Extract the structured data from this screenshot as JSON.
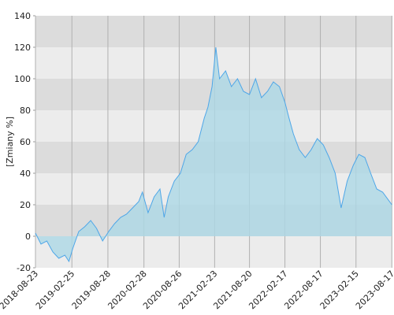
{
  "chart_data": {
    "type": "area",
    "y_label": "[Zmiany %]",
    "x": [
      "2018-08-23",
      "2018-09-20",
      "2018-10-20",
      "2018-11-20",
      "2018-12-20",
      "2019-01-20",
      "2019-02-10",
      "2019-03-01",
      "2019-04-01",
      "2019-05-01",
      "2019-06-01",
      "2019-07-01",
      "2019-08-01",
      "2019-09-01",
      "2019-10-01",
      "2019-11-01",
      "2019-12-01",
      "2020-01-01",
      "2020-02-01",
      "2020-02-20",
      "2020-03-20",
      "2020-04-20",
      "2020-05-20",
      "2020-06-10",
      "2020-07-01",
      "2020-08-01",
      "2020-09-01",
      "2020-10-01",
      "2020-11-01",
      "2020-12-01",
      "2021-01-01",
      "2021-01-20",
      "2021-02-10",
      "2021-03-01",
      "2021-03-20",
      "2021-04-20",
      "2021-05-20",
      "2021-06-20",
      "2021-07-20",
      "2021-08-20",
      "2021-09-20",
      "2021-10-20",
      "2021-11-20",
      "2021-12-20",
      "2022-01-20",
      "2022-02-17",
      "2022-03-10",
      "2022-04-01",
      "2022-05-01",
      "2022-06-01",
      "2022-07-01",
      "2022-08-01",
      "2022-09-01",
      "2022-10-01",
      "2022-11-01",
      "2022-12-01",
      "2023-01-01",
      "2023-02-01",
      "2023-03-01",
      "2023-04-01",
      "2023-05-01",
      "2023-06-01",
      "2023-07-01",
      "2023-08-17"
    ],
    "values": [
      2,
      -5,
      -3,
      -10,
      -14,
      -12,
      -16,
      -8,
      3,
      6,
      10,
      5,
      -3,
      3,
      8,
      12,
      14,
      18,
      22,
      28,
      15,
      25,
      30,
      12,
      25,
      35,
      40,
      52,
      55,
      60,
      75,
      82,
      95,
      120,
      100,
      105,
      95,
      100,
      92,
      90,
      100,
      88,
      92,
      98,
      95,
      85,
      75,
      65,
      55,
      50,
      55,
      62,
      58,
      50,
      40,
      18,
      35,
      45,
      52,
      50,
      40,
      30,
      28,
      20
    ],
    "color": "#4da6e8",
    "fill": "#add8e6",
    "xlim": [
      "2018-08-23",
      "2023-08-20"
    ],
    "xticks": [
      "2018-08-23",
      "2019-02-25",
      "2019-08-28",
      "2020-02-28",
      "2020-08-26",
      "2021-02-23",
      "2021-08-20",
      "2022-02-17",
      "2022-08-17",
      "2023-02-15",
      "2023-08-17"
    ],
    "ylim": [
      -20,
      140
    ],
    "yticks": [
      -20,
      0,
      20,
      40,
      60,
      80,
      100,
      120,
      140
    ],
    "bands": true
  }
}
